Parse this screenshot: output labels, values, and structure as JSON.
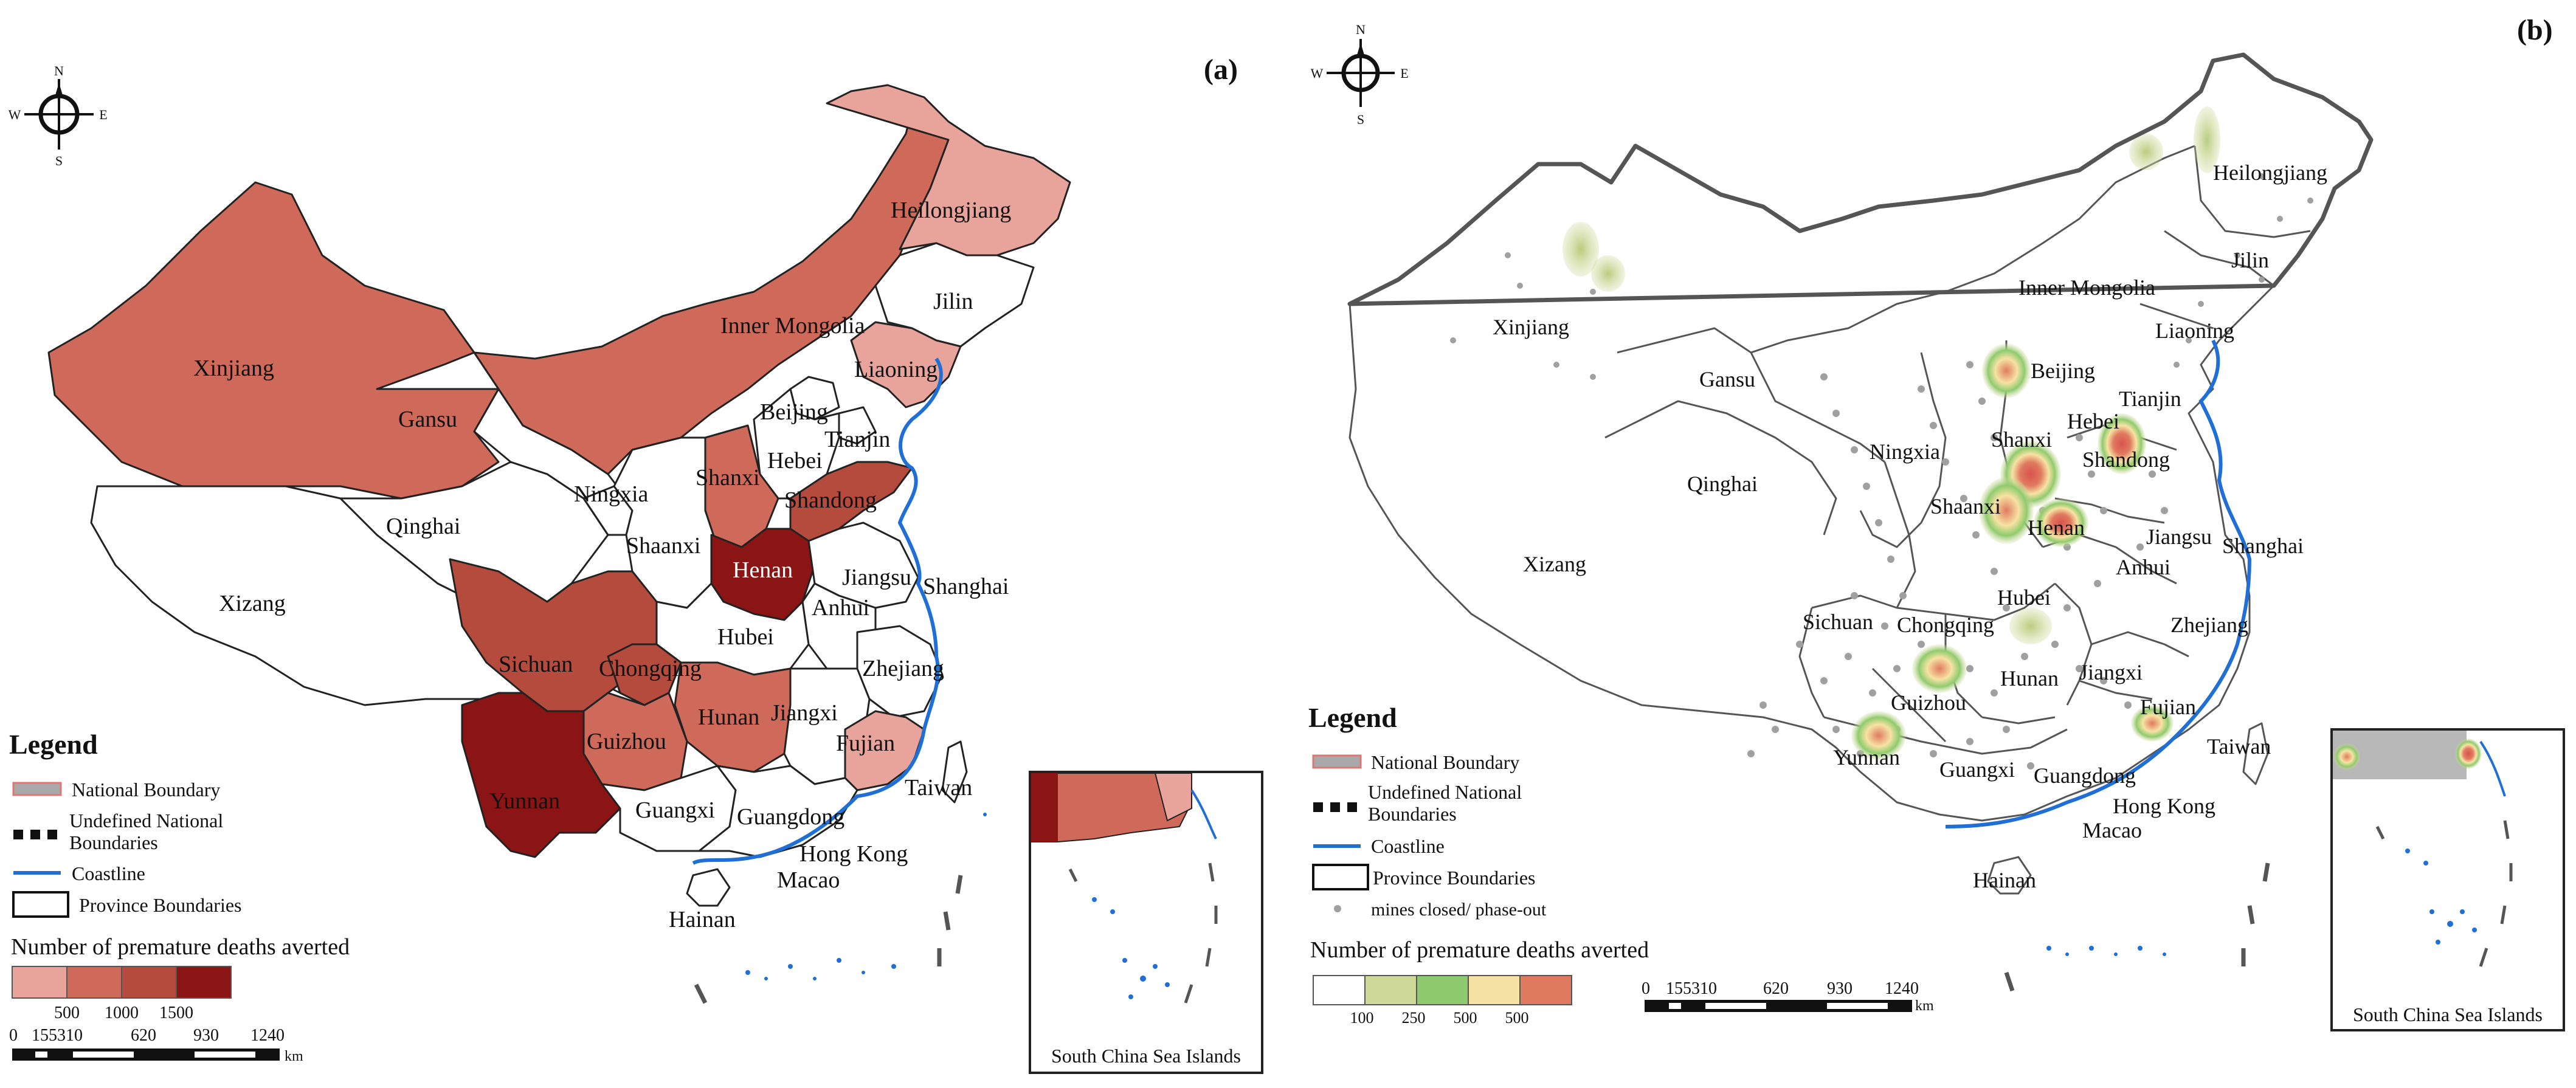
{
  "panel_a": {
    "label": "(a)",
    "compass": {
      "n": "N",
      "s": "S",
      "e": "E",
      "w": "W"
    },
    "provinces": [
      {
        "name": "Heilongjiang",
        "color": "#e8a39b"
      },
      {
        "name": "Jilin",
        "color": "#ffffff"
      },
      {
        "name": "Liaoning",
        "color": "#e8a39b"
      },
      {
        "name": "Inner Mongolia",
        "color": "#cf6a5a"
      },
      {
        "name": "Xinjiang",
        "color": "#cf6a5a"
      },
      {
        "name": "Gansu",
        "color": "#ffffff"
      },
      {
        "name": "Beijing",
        "color": "#ffffff"
      },
      {
        "name": "Tianjin",
        "color": "#ffffff"
      },
      {
        "name": "Hebei",
        "color": "#ffffff"
      },
      {
        "name": "Shanxi",
        "color": "#cf6a5a"
      },
      {
        "name": "Shandong",
        "color": "#b54b3c"
      },
      {
        "name": "Ningxia",
        "color": "#ffffff"
      },
      {
        "name": "Qinghai",
        "color": "#ffffff"
      },
      {
        "name": "Shaanxi",
        "color": "#ffffff"
      },
      {
        "name": "Henan",
        "color": "#8b1515"
      },
      {
        "name": "Jiangsu",
        "color": "#ffffff"
      },
      {
        "name": "Shanghai",
        "color": "#ffffff"
      },
      {
        "name": "Xizang",
        "color": "#ffffff"
      },
      {
        "name": "Anhui",
        "color": "#ffffff"
      },
      {
        "name": "Hubei",
        "color": "#ffffff"
      },
      {
        "name": "Sichuan",
        "color": "#b54b3c"
      },
      {
        "name": "Chongqing",
        "color": "#b54b3c"
      },
      {
        "name": "Zhejiang",
        "color": "#ffffff"
      },
      {
        "name": "Hunan",
        "color": "#cf6a5a"
      },
      {
        "name": "Jiangxi",
        "color": "#ffffff"
      },
      {
        "name": "Guizhou",
        "color": "#cf6a5a"
      },
      {
        "name": "Fujian",
        "color": "#e8a39b"
      },
      {
        "name": "Yunnan",
        "color": "#8b1515"
      },
      {
        "name": "Guangxi",
        "color": "#ffffff"
      },
      {
        "name": "Guangdong",
        "color": "#ffffff"
      },
      {
        "name": "Taiwan",
        "color": "#ffffff"
      },
      {
        "name": "Hong Kong",
        "color": "#ffffff"
      },
      {
        "name": "Macao",
        "color": "#ffffff"
      },
      {
        "name": "Hainan",
        "color": "#ffffff"
      }
    ],
    "legend": {
      "title": "Legend",
      "items": [
        "National Boundary",
        "Undefined National Boundaries",
        "Coastline",
        "Province Boundaries"
      ],
      "colorbar_title": "Number of premature deaths averted",
      "colorbar_colors": [
        "#e8a39b",
        "#cf6a5a",
        "#b54b3c",
        "#8b1515"
      ],
      "colorbar_ticks": [
        "500",
        "1000",
        "1500"
      ]
    },
    "scalebar": {
      "ticks": [
        "0",
        "155310",
        "620",
        "930",
        "1240"
      ],
      "unit": "km"
    },
    "inset_label": "South China Sea Islands"
  },
  "panel_b": {
    "label": "(b)",
    "compass": {
      "n": "N",
      "s": "S",
      "e": "E",
      "w": "W"
    },
    "provinces": [
      "Heilongjiang",
      "Jilin",
      "Inner Mongolia",
      "Liaoning",
      "Xinjiang",
      "Gansu",
      "Beijing",
      "Tianjin",
      "Hebei",
      "Ningxia",
      "Shanxi",
      "Shandong",
      "Qinghai",
      "Shaanxi",
      "Henan",
      "Jiangsu",
      "Shanghai",
      "Xizang",
      "Anhui",
      "Hubei",
      "Sichuan",
      "Chongqing",
      "Zhejiang",
      "Hunan",
      "Jiangxi",
      "Guizhou",
      "Fujian",
      "Taiwan",
      "Yunnan",
      "Guangxi",
      "Guangdong",
      "Hong Kong",
      "Macao",
      "Hainan"
    ],
    "legend": {
      "title": "Legend",
      "items": [
        "National Boundary",
        "Undefined National Boundaries",
        "Coastline",
        "Province Boundaries",
        "mines closed/ phase-out"
      ],
      "colorbar_title": "Number of premature deaths averted",
      "colorbar_colors": [
        "#ffffff",
        "#cfd99a",
        "#8fcb6e",
        "#f6e3a3",
        "#e07a5f"
      ],
      "colorbar_ticks": [
        "100",
        "250",
        "500",
        "500"
      ]
    },
    "scalebar": {
      "ticks": [
        "0",
        "155310",
        "620",
        "930",
        "1240"
      ],
      "unit": "km"
    },
    "inset_label": "South China Sea Islands"
  }
}
